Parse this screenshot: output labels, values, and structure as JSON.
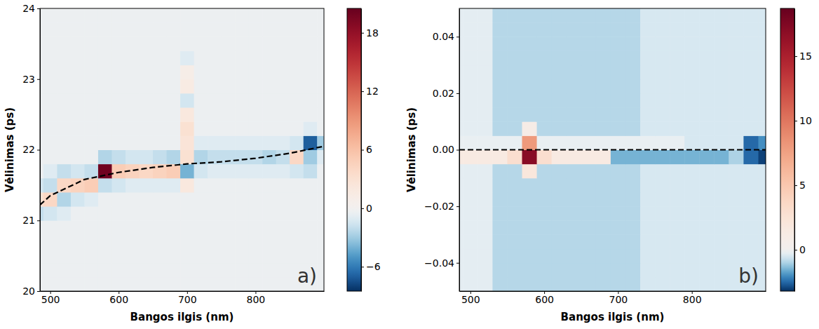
{
  "chart_data": [
    {
      "type": "heatmap",
      "x_label": "Bangos ilgis (nm)",
      "y_label": "Vėlinimas (ps)",
      "annotation": "a)",
      "xlim": [
        485,
        900
      ],
      "xticks": [
        500,
        600,
        700,
        800
      ],
      "ylim": [
        20,
        24
      ],
      "yticks": [
        20,
        21,
        22,
        23,
        24
      ],
      "x": [
        480,
        500,
        520,
        540,
        560,
        580,
        600,
        620,
        640,
        660,
        680,
        700,
        720,
        740,
        760,
        780,
        800,
        820,
        840,
        860,
        880,
        900
      ],
      "y": [
        20.1,
        20.3,
        20.5,
        20.7,
        20.9,
        21.1,
        21.3,
        21.5,
        21.7,
        21.9,
        22.1,
        22.3,
        22.5,
        22.7,
        22.9,
        23.1,
        23.3,
        23.5,
        23.7,
        23.9
      ],
      "z": [
        [
          -0.4,
          -0.4,
          -0.4,
          -0.4,
          -0.4,
          -0.4,
          -0.4,
          -0.4,
          -0.4,
          -0.4,
          -0.4,
          -0.4,
          -0.4,
          -0.4,
          -0.4,
          -0.4,
          -0.4,
          -0.4,
          -0.4,
          -0.4,
          -0.4,
          -0.4
        ],
        [
          -0.4,
          -0.4,
          -0.4,
          -0.4,
          -0.4,
          -0.4,
          -0.4,
          -0.4,
          -0.4,
          -0.4,
          -0.4,
          -0.4,
          -0.4,
          -0.4,
          -0.4,
          -0.4,
          -0.4,
          -0.4,
          -0.4,
          -0.4,
          -0.4,
          -0.4
        ],
        [
          -0.4,
          -0.4,
          -0.4,
          -0.4,
          -0.4,
          -0.4,
          -0.4,
          -0.4,
          -0.4,
          -0.4,
          -0.4,
          -0.4,
          -0.4,
          -0.4,
          -0.4,
          -0.4,
          -0.4,
          -0.4,
          -0.4,
          -0.4,
          -0.4,
          -0.4
        ],
        [
          -0.4,
          -0.4,
          -0.4,
          -0.4,
          -0.4,
          -0.4,
          -0.4,
          -0.4,
          -0.4,
          -0.4,
          -0.4,
          -0.4,
          -0.4,
          -0.4,
          -0.4,
          -0.4,
          -0.4,
          -0.4,
          -0.4,
          -0.4,
          -0.4,
          -0.4
        ],
        [
          -0.4,
          -0.4,
          -0.4,
          -0.4,
          -0.4,
          -0.4,
          -0.4,
          -0.4,
          -0.4,
          -0.4,
          -0.4,
          -0.4,
          -0.4,
          -0.4,
          -0.4,
          -0.4,
          -0.4,
          -0.4,
          -0.4,
          -0.4,
          -0.4,
          -0.4
        ],
        [
          -2,
          -1.5,
          -1,
          -0.4,
          -0.4,
          -0.4,
          -0.4,
          -0.4,
          -0.4,
          -0.4,
          -0.4,
          -0.4,
          -0.4,
          -0.4,
          -0.4,
          -0.4,
          -0.4,
          -0.4,
          -0.4,
          -0.4,
          -0.4,
          -0.4
        ],
        [
          3,
          4,
          -2.5,
          -1.5,
          -1,
          -0.4,
          -0.4,
          -0.4,
          -0.4,
          -0.4,
          -0.4,
          -0.4,
          -0.4,
          -0.4,
          -0.4,
          -0.4,
          -0.4,
          -0.4,
          -0.4,
          -0.4,
          -0.4,
          -0.4
        ],
        [
          -1.5,
          -2,
          4,
          4.5,
          5,
          -2,
          -1.5,
          -1,
          -1,
          -1,
          -1,
          2,
          -0.4,
          -0.4,
          -0.4,
          -0.4,
          -0.4,
          -0.4,
          -0.4,
          -0.4,
          -0.4,
          -0.4
        ],
        [
          -0.4,
          -1,
          -2,
          -1.5,
          -2,
          20,
          5,
          4.5,
          4,
          4.5,
          5,
          -4,
          -1.5,
          -1,
          -1,
          -1,
          -1,
          -1,
          -1,
          -1.5,
          -2,
          -0.4
        ],
        [
          -0.4,
          -0.4,
          -0.4,
          -0.4,
          -0.4,
          -2.5,
          -2,
          -1.5,
          -1.5,
          -2,
          -2.5,
          3,
          -2.5,
          -2,
          -2,
          -2,
          -2,
          -2.5,
          -2,
          4,
          -3,
          -1
        ],
        [
          -0.4,
          -0.4,
          -0.4,
          -0.4,
          -0.4,
          -0.4,
          -0.4,
          -0.4,
          -0.4,
          -0.4,
          -0.4,
          2.5,
          -1,
          -1,
          -1,
          -1,
          -1,
          -1,
          -1,
          -1.5,
          -7,
          -3
        ],
        [
          -0.4,
          -0.4,
          -0.4,
          -0.4,
          -0.4,
          -0.4,
          -0.4,
          -0.4,
          -0.4,
          -0.4,
          -0.4,
          3,
          -0.4,
          -0.4,
          -0.4,
          -0.4,
          -0.4,
          -0.4,
          -0.4,
          -0.4,
          -1,
          -0.4
        ],
        [
          -0.4,
          -0.4,
          -0.4,
          -0.4,
          -0.4,
          -0.4,
          -0.4,
          -0.4,
          -0.4,
          -0.4,
          -0.4,
          2,
          -0.4,
          -0.4,
          -0.4,
          -0.4,
          -0.4,
          -0.4,
          -0.4,
          -0.4,
          -0.4,
          -0.4
        ],
        [
          -0.4,
          -0.4,
          -0.4,
          -0.4,
          -0.4,
          -0.4,
          -0.4,
          -0.4,
          -0.4,
          -0.4,
          -0.4,
          -1.5,
          -0.4,
          -0.4,
          -0.4,
          -0.4,
          -0.4,
          -0.4,
          -0.4,
          -0.4,
          -0.4,
          -0.4
        ],
        [
          -0.4,
          -0.4,
          -0.4,
          -0.4,
          -0.4,
          -0.4,
          -0.4,
          -0.4,
          -0.4,
          -0.4,
          -0.4,
          1.5,
          -0.4,
          -0.4,
          -0.4,
          -0.4,
          -0.4,
          -0.4,
          -0.4,
          -0.4,
          -0.4,
          -0.4
        ],
        [
          -0.4,
          -0.4,
          -0.4,
          -0.4,
          -0.4,
          -0.4,
          -0.4,
          -0.4,
          -0.4,
          -0.4,
          -0.4,
          1,
          -0.4,
          -0.4,
          -0.4,
          -0.4,
          -0.4,
          -0.4,
          -0.4,
          -0.4,
          -0.4,
          -0.4
        ],
        [
          -0.4,
          -0.4,
          -0.4,
          -0.4,
          -0.4,
          -0.4,
          -0.4,
          -0.4,
          -0.4,
          -0.4,
          -0.4,
          -1,
          -0.4,
          -0.4,
          -0.4,
          -0.4,
          -0.4,
          -0.4,
          -0.4,
          -0.4,
          -0.4,
          -0.4
        ],
        [
          -0.4,
          -0.4,
          -0.4,
          -0.4,
          -0.4,
          -0.4,
          -0.4,
          -0.4,
          -0.4,
          -0.4,
          -0.4,
          -0.4,
          -0.4,
          -0.4,
          -0.4,
          -0.4,
          -0.4,
          -0.4,
          -0.4,
          -0.4,
          -0.4,
          -0.4
        ],
        [
          -0.4,
          -0.4,
          -0.4,
          -0.4,
          -0.4,
          -0.4,
          -0.4,
          -0.4,
          -0.4,
          -0.4,
          -0.4,
          -0.4,
          -0.4,
          -0.4,
          -0.4,
          -0.4,
          -0.4,
          -0.4,
          -0.4,
          -0.4,
          -0.4,
          -0.4
        ],
        [
          -0.4,
          -0.4,
          -0.4,
          -0.4,
          -0.4,
          -0.4,
          -0.4,
          -0.4,
          -0.4,
          -0.4,
          -0.4,
          -0.4,
          -0.4,
          -0.4,
          -0.4,
          -0.4,
          -0.4,
          -0.4,
          -0.4,
          -0.4,
          -0.4,
          -0.4
        ]
      ],
      "zlim": [
        -8.5,
        20.5
      ],
      "zticks": [
        {
          "value": -6,
          "label": "−6"
        },
        0,
        6,
        12,
        18
      ],
      "series": [
        {
          "type": "line",
          "line_style": "dashed",
          "color": "#000000",
          "x": [
            485,
            500,
            550,
            600,
            650,
            700,
            750,
            800,
            850,
            900
          ],
          "values": [
            21.22,
            21.35,
            21.58,
            21.68,
            21.75,
            21.8,
            21.83,
            21.88,
            21.95,
            22.05
          ]
        }
      ]
    },
    {
      "type": "heatmap",
      "x_label": "Bangos ilgis (nm)",
      "y_label": "Vėlinimas (ps)",
      "annotation": "b)",
      "xlim": [
        485,
        900
      ],
      "xticks": [
        500,
        600,
        700,
        800
      ],
      "ylim": [
        -0.05,
        0.05
      ],
      "yticks": [
        {
          "value": -0.04,
          "label": "−0.04"
        },
        {
          "value": -0.02,
          "label": "−0.02"
        },
        {
          "value": 0,
          "label": "0.00"
        },
        {
          "value": 0.02,
          "label": "0.02"
        },
        {
          "value": 0.04,
          "label": "0.04"
        }
      ],
      "x": [
        480,
        500,
        520,
        540,
        560,
        580,
        600,
        620,
        640,
        660,
        680,
        700,
        720,
        740,
        760,
        780,
        800,
        820,
        840,
        860,
        880,
        900
      ],
      "y": [
        -0.0475,
        -0.0425,
        -0.0375,
        -0.0325,
        -0.0275,
        -0.0225,
        -0.0175,
        -0.0125,
        -0.0075,
        -0.0025,
        0.0025,
        0.0075,
        0.0125,
        0.0175,
        0.0225,
        0.0275,
        0.0325,
        0.0375,
        0.0425,
        0.0475
      ],
      "z": [
        [
          -0.3,
          -0.3,
          -0.3,
          -0.9,
          -0.9,
          -0.9,
          -0.9,
          -0.9,
          -0.9,
          -0.9,
          -0.9,
          -0.9,
          -0.9,
          -0.5,
          -0.5,
          -0.5,
          -0.5,
          -0.5,
          -0.5,
          -0.5,
          -0.5,
          -0.5
        ],
        [
          -0.3,
          -0.3,
          -0.3,
          -0.9,
          -0.9,
          -0.9,
          -0.9,
          -0.9,
          -0.9,
          -0.9,
          -0.9,
          -0.9,
          -0.9,
          -0.5,
          -0.5,
          -0.5,
          -0.5,
          -0.5,
          -0.5,
          -0.5,
          -0.5,
          -0.5
        ],
        [
          -0.3,
          -0.3,
          -0.3,
          -0.9,
          -0.9,
          -0.9,
          -0.9,
          -0.9,
          -0.9,
          -0.9,
          -0.9,
          -0.9,
          -0.9,
          -0.5,
          -0.5,
          -0.5,
          -0.5,
          -0.5,
          -0.5,
          -0.5,
          -0.5,
          -0.5
        ],
        [
          -0.3,
          -0.3,
          -0.3,
          -0.9,
          -0.9,
          -0.9,
          -0.9,
          -0.9,
          -0.9,
          -0.9,
          -0.9,
          -0.9,
          -0.9,
          -0.5,
          -0.5,
          -0.5,
          -0.5,
          -0.5,
          -0.5,
          -0.5,
          -0.5,
          -0.5
        ],
        [
          -0.3,
          -0.3,
          -0.3,
          -0.9,
          -0.9,
          -0.9,
          -0.9,
          -0.9,
          -0.9,
          -0.9,
          -0.9,
          -0.9,
          -0.9,
          -0.5,
          -0.5,
          -0.5,
          -0.5,
          -0.5,
          -0.5,
          -0.5,
          -0.5,
          -0.5
        ],
        [
          -0.3,
          -0.3,
          -0.3,
          -0.9,
          -0.9,
          -0.9,
          -0.9,
          -0.9,
          -0.9,
          -0.9,
          -0.9,
          -0.9,
          -0.9,
          -0.5,
          -0.5,
          -0.5,
          -0.5,
          -0.5,
          -0.5,
          -0.5,
          -0.5,
          -0.5
        ],
        [
          -0.3,
          -0.3,
          -0.3,
          -0.9,
          -0.9,
          -0.9,
          -0.9,
          -0.9,
          -0.9,
          -0.9,
          -0.9,
          -0.9,
          -0.9,
          -0.5,
          -0.5,
          -0.5,
          -0.5,
          -0.5,
          -0.5,
          -0.5,
          -0.5,
          -0.5
        ],
        [
          -0.3,
          -0.3,
          -0.3,
          -0.9,
          -0.9,
          -0.9,
          -0.9,
          -0.9,
          -0.9,
          -0.9,
          -0.9,
          -0.9,
          -0.9,
          -0.5,
          -0.5,
          -0.5,
          -0.5,
          -0.5,
          -0.5,
          -0.5,
          -0.5,
          -0.5
        ],
        [
          -0.3,
          -0.3,
          -0.3,
          -0.9,
          -0.9,
          2,
          -0.9,
          -0.9,
          -0.9,
          -0.9,
          -0.9,
          -0.9,
          -0.9,
          -0.5,
          -0.5,
          -0.5,
          -0.5,
          -0.5,
          -0.5,
          -0.5,
          -0.5,
          -0.5
        ],
        [
          1.5,
          1.5,
          1.5,
          1.5,
          3,
          17,
          3,
          1.5,
          1.5,
          1.5,
          1.5,
          -1.5,
          -1.5,
          -1.5,
          -1.5,
          -1.5,
          -1.5,
          -1.5,
          -1.5,
          -1,
          -2.5,
          -3
        ],
        [
          -0.2,
          -0.2,
          -0.2,
          -0.2,
          -0.2,
          8,
          -0.2,
          -0.2,
          -0.2,
          -0.2,
          -0.2,
          -0.2,
          -0.2,
          -0.2,
          -0.2,
          -0.2,
          -0.5,
          -0.5,
          -0.5,
          -0.5,
          -2.5,
          -2
        ],
        [
          -0.3,
          -0.3,
          -0.3,
          -0.9,
          -0.9,
          1,
          -0.9,
          -0.9,
          -0.9,
          -0.9,
          -0.9,
          -0.9,
          -0.9,
          -0.5,
          -0.5,
          -0.5,
          -0.5,
          -0.5,
          -0.5,
          -0.5,
          -0.5,
          -0.5
        ],
        [
          -0.3,
          -0.3,
          -0.3,
          -0.9,
          -0.9,
          -0.9,
          -0.9,
          -0.9,
          -0.9,
          -0.9,
          -0.9,
          -0.9,
          -0.9,
          -0.5,
          -0.5,
          -0.5,
          -0.5,
          -0.5,
          -0.5,
          -0.5,
          -0.5,
          -0.5
        ],
        [
          -0.3,
          -0.3,
          -0.3,
          -0.9,
          -0.9,
          -0.9,
          -0.9,
          -0.9,
          -0.9,
          -0.9,
          -0.9,
          -0.9,
          -0.9,
          -0.5,
          -0.5,
          -0.5,
          -0.5,
          -0.5,
          -0.5,
          -0.5,
          -0.5,
          -0.5
        ],
        [
          -0.3,
          -0.3,
          -0.3,
          -0.9,
          -0.9,
          -0.9,
          -0.9,
          -0.9,
          -0.9,
          -0.9,
          -0.9,
          -0.9,
          -0.9,
          -0.5,
          -0.5,
          -0.5,
          -0.5,
          -0.5,
          -0.5,
          -0.5,
          -0.5,
          -0.5
        ],
        [
          -0.3,
          -0.3,
          -0.3,
          -0.9,
          -0.9,
          -0.9,
          -0.9,
          -0.9,
          -0.9,
          -0.9,
          -0.9,
          -0.9,
          -0.9,
          -0.5,
          -0.5,
          -0.5,
          -0.5,
          -0.5,
          -0.5,
          -0.5,
          -0.5,
          -0.5
        ],
        [
          -0.3,
          -0.3,
          -0.3,
          -0.9,
          -0.9,
          -0.9,
          -0.9,
          -0.9,
          -0.9,
          -0.9,
          -0.9,
          -0.9,
          -0.9,
          -0.5,
          -0.5,
          -0.5,
          -0.5,
          -0.5,
          -0.5,
          -0.5,
          -0.5,
          -0.5
        ],
        [
          -0.3,
          -0.3,
          -0.3,
          -0.9,
          -0.9,
          -0.9,
          -0.9,
          -0.9,
          -0.9,
          -0.9,
          -0.9,
          -0.9,
          -0.9,
          -0.5,
          -0.5,
          -0.5,
          -0.5,
          -0.5,
          -0.5,
          -0.5,
          -0.5,
          -0.5
        ],
        [
          -0.3,
          -0.3,
          -0.3,
          -0.9,
          -0.9,
          -0.9,
          -0.9,
          -0.9,
          -0.9,
          -0.9,
          -0.9,
          -0.9,
          -0.9,
          -0.5,
          -0.5,
          -0.5,
          -0.5,
          -0.5,
          -0.5,
          -0.5,
          -0.5,
          -0.5
        ],
        [
          -0.3,
          -0.3,
          -0.3,
          -0.9,
          -0.9,
          -0.9,
          -0.9,
          -0.9,
          -0.9,
          -0.9,
          -0.9,
          -0.9,
          -0.9,
          -0.5,
          -0.5,
          -0.5,
          -0.5,
          -0.5,
          -0.5,
          -0.5,
          -0.5,
          -0.5
        ]
      ],
      "zlim": [
        -3.2,
        18.7
      ],
      "zticks": [
        0,
        5,
        10,
        15
      ],
      "series": [
        {
          "type": "line",
          "line_style": "dashed",
          "color": "#000000",
          "x": [
            485,
            900
          ],
          "values": [
            0,
            0
          ]
        }
      ]
    }
  ]
}
